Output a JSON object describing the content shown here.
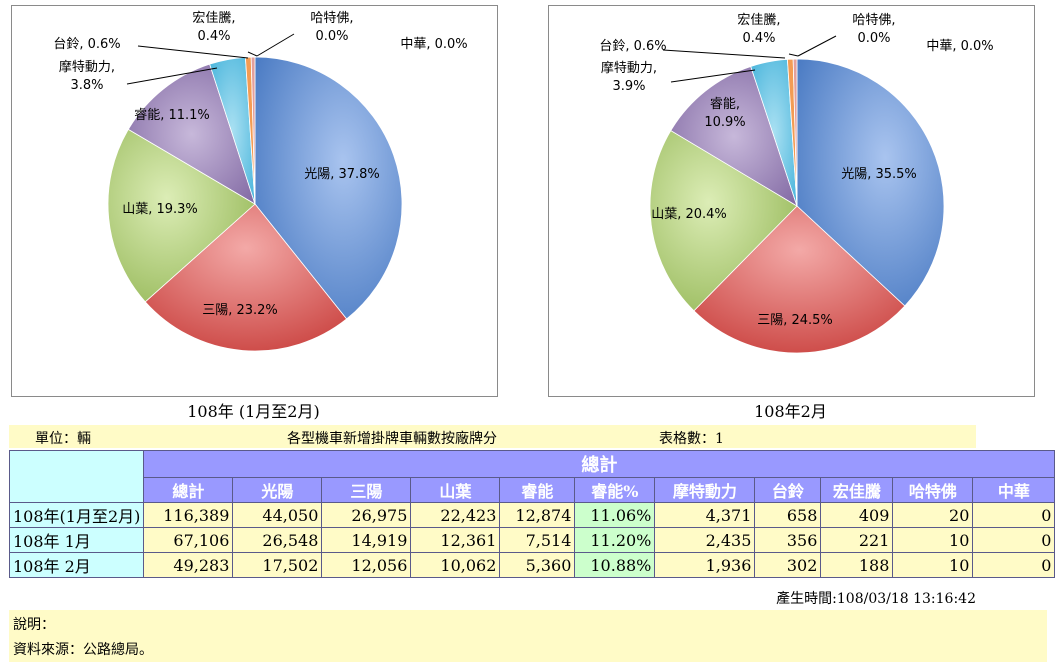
{
  "chart_data": [
    {
      "type": "pie",
      "title": "108年 (1月至2月)",
      "slices": [
        {
          "label": "光陽",
          "value": 37.8,
          "text": "光陽, 37.8%"
        },
        {
          "label": "三陽",
          "value": 23.2,
          "text": "三陽, 23.2%"
        },
        {
          "label": "山葉",
          "value": 19.3,
          "text": "山葉, 19.3%"
        },
        {
          "label": "睿能",
          "value": 11.1,
          "text": "睿能, 11.1%"
        },
        {
          "label": "摩特動力",
          "value": 3.8,
          "text": "摩特動力,|3.8%"
        },
        {
          "label": "台鈴",
          "value": 0.6,
          "text": "台鈴, 0.6%"
        },
        {
          "label": "宏佳騰",
          "value": 0.4,
          "text": "宏佳騰,|0.4%"
        },
        {
          "label": "哈特佛",
          "value": 0.0,
          "text": "哈特佛,|0.0%"
        },
        {
          "label": "中華",
          "value": 0.0,
          "text": "中華, 0.0%"
        }
      ]
    },
    {
      "type": "pie",
      "title": "108年2月",
      "slices": [
        {
          "label": "光陽",
          "value": 35.5,
          "text": "光陽, 35.5%"
        },
        {
          "label": "三陽",
          "value": 24.5,
          "text": "三陽, 24.5%"
        },
        {
          "label": "山葉",
          "value": 20.4,
          "text": "山葉, 20.4%"
        },
        {
          "label": "睿能",
          "value": 10.9,
          "text": "睿能,|10.9%"
        },
        {
          "label": "摩特動力",
          "value": 3.9,
          "text": "摩特動力,|3.9%"
        },
        {
          "label": "台鈴",
          "value": 0.6,
          "text": "台鈴, 0.6%"
        },
        {
          "label": "宏佳騰",
          "value": 0.4,
          "text": "宏佳騰,|0.4%"
        },
        {
          "label": "哈特佛",
          "value": 0.0,
          "text": "哈特佛,|0.0%"
        },
        {
          "label": "中華",
          "value": 0.0,
          "text": "中華, 0.0%"
        }
      ]
    }
  ],
  "colors": {
    "光陽": "#5b86c8",
    "三陽": "#d9625f",
    "山葉": "#a8c76b",
    "睿能": "#8e76ad",
    "摩特動力": "#55bde0",
    "台鈴": "#f39c54",
    "宏佳騰": "#9fb3d8",
    "哈特佛": "#e3a09c",
    "中華": "#c3d69b"
  },
  "header": {
    "unit": "單位：輛",
    "title": "各型機車新增掛牌車輛數按廠牌分",
    "table_no": "表格數：1"
  },
  "table": {
    "group_header": "總計",
    "columns": [
      "總計",
      "光陽",
      "三陽",
      "山葉",
      "睿能",
      "睿能%",
      "摩特動力",
      "台鈴",
      "宏佳騰",
      "哈特佛",
      "中華"
    ],
    "rows": [
      {
        "label": "108年(1月至2月)",
        "values": [
          "116,389",
          "44,050",
          "26,975",
          "22,423",
          "12,874",
          "11.06%",
          "4,371",
          "658",
          "409",
          "20",
          "0"
        ]
      },
      {
        "label": "108年 1月",
        "values": [
          "67,106",
          "26,548",
          "14,919",
          "12,361",
          "7,514",
          "11.20%",
          "2,435",
          "356",
          "221",
          "10",
          "0"
        ]
      },
      {
        "label": "108年 2月",
        "values": [
          "49,283",
          "17,502",
          "12,056",
          "10,062",
          "5,360",
          "10.88%",
          "1,936",
          "302",
          "188",
          "10",
          "0"
        ]
      }
    ]
  },
  "generated": "產生時間:108/03/18 13:16:42",
  "notes": {
    "explain": "說明：",
    "source": "資料來源：公路總局。"
  }
}
